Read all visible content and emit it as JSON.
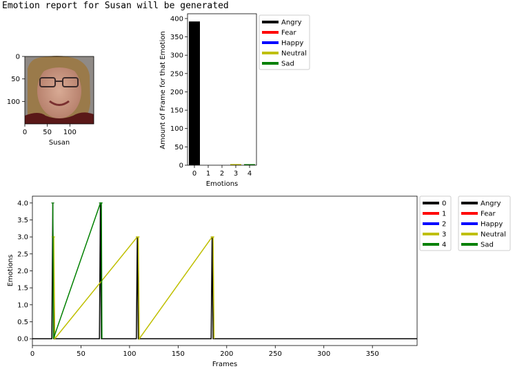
{
  "header": {
    "text": "Emotion report for Susan will be generated"
  },
  "face_panel": {
    "xlabel": "Susan",
    "x_ticks": [
      "0",
      "50",
      "100"
    ],
    "y_ticks": [
      "0",
      "50",
      "100"
    ],
    "skin_color": "#c89a86",
    "hair_color": "#9a7a4a",
    "shirt_color": "#5a1818",
    "background_color": "#8f8a86"
  },
  "colors": {
    "Angry": "#000000",
    "Fear": "#ff0000",
    "Happy": "#0000ff",
    "Neutral": "#bfbf00",
    "Sad": "#008000"
  },
  "chart_data": [
    {
      "type": "bar",
      "categories": [
        0,
        1,
        2,
        3,
        4
      ],
      "x_ticks": [
        "0",
        "1",
        "2",
        "3",
        "4"
      ],
      "values": [
        392,
        0,
        0,
        3,
        1
      ],
      "bar_colors": [
        "#000000",
        "#ff0000",
        "#0000ff",
        "#bfbf00",
        "#008000"
      ],
      "xlabel": "Emotions",
      "ylabel": "Amount of Frame for that Emotion",
      "ylim": [
        0,
        413
      ],
      "xlim": [
        -0.5,
        4.5
      ],
      "y_ticks": [
        "0",
        "50",
        "100",
        "150",
        "200",
        "250",
        "300",
        "350",
        "400"
      ],
      "legend": {
        "placement": "outside-right",
        "entries": [
          "Angry",
          "Fear",
          "Happy",
          "Neutral",
          "Sad"
        ]
      }
    },
    {
      "type": "line",
      "xlabel": "Frames",
      "ylabel": "Emotions",
      "xlim": [
        0,
        396
      ],
      "ylim": [
        -0.2,
        4.2
      ],
      "x_ticks": [
        "0",
        "50",
        "100",
        "150",
        "200",
        "250",
        "300",
        "350"
      ],
      "y_ticks": [
        "0.0",
        "0.5",
        "1.0",
        "1.5",
        "2.0",
        "2.5",
        "3.0",
        "3.5",
        "4.0"
      ],
      "series": [
        {
          "name": "0",
          "color": "#000000",
          "points": [
            [
              0,
              0
            ],
            [
              20,
              0
            ],
            [
              21,
              4
            ],
            [
              22,
              0
            ],
            [
              69,
              0
            ],
            [
              70,
              4
            ],
            [
              71,
              0
            ],
            [
              107,
              0
            ],
            [
              108,
              3
            ],
            [
              109,
              0
            ],
            [
              184,
              0
            ],
            [
              185,
              3
            ],
            [
              186,
              0
            ],
            [
              396,
              0
            ]
          ]
        },
        {
          "name": "1",
          "color": "#ff0000",
          "points": []
        },
        {
          "name": "2",
          "color": "#0000ff",
          "points": []
        },
        {
          "name": "3",
          "color": "#bfbf00",
          "points": [
            [
              21,
              3
            ],
            [
              22,
              3
            ],
            [
              23,
              0
            ],
            [
              108,
              3
            ],
            [
              109,
              3
            ],
            [
              110,
              0
            ],
            [
              185,
              3
            ],
            [
              186,
              3
            ],
            [
              187,
              0
            ]
          ]
        },
        {
          "name": "4",
          "color": "#008000",
          "points": [
            [
              21,
              4
            ],
            [
              21.6,
              0
            ],
            [
              70,
              4
            ],
            [
              71,
              4
            ],
            [
              71.6,
              0
            ]
          ]
        }
      ],
      "legends": [
        {
          "placement": "outside-right",
          "entries": [
            "0",
            "1",
            "2",
            "3",
            "4"
          ]
        },
        {
          "placement": "outside-right",
          "entries": [
            "Angry",
            "Fear",
            "Happy",
            "Neutral",
            "Sad"
          ]
        }
      ]
    }
  ]
}
